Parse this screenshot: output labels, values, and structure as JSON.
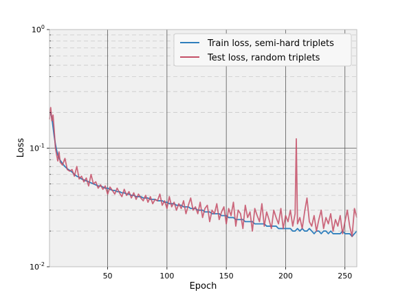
{
  "chart_data": {
    "type": "line",
    "title": "",
    "xlabel": "Epoch",
    "ylabel": "Loss",
    "xlim": [
      1,
      260
    ],
    "ylim": [
      0.01,
      1
    ],
    "yscale": "log",
    "grid": true,
    "legend_position": "top-right",
    "x_ticks": [
      50,
      100,
      150,
      200,
      250
    ],
    "x_tick_labels": [
      "50",
      "100",
      "150",
      "200",
      "250"
    ],
    "y_ticks": [
      0.01,
      0.1,
      1
    ],
    "y_tick_labels": [
      {
        "base": "10",
        "exp": "-2"
      },
      {
        "base": "10",
        "exp": "-1"
      },
      {
        "base": "10",
        "exp": "0"
      }
    ],
    "series": [
      {
        "name": "Train loss, semi-hard triplets",
        "color": "#2e7ebc",
        "x": [
          1,
          2,
          3,
          4,
          5,
          6,
          7,
          8,
          9,
          10,
          12,
          14,
          16,
          18,
          20,
          22,
          24,
          26,
          28,
          30,
          32,
          34,
          36,
          38,
          40,
          42,
          44,
          46,
          48,
          50,
          52,
          54,
          56,
          58,
          60,
          62,
          64,
          66,
          68,
          70,
          72,
          74,
          76,
          78,
          80,
          82,
          84,
          86,
          88,
          90,
          92,
          94,
          96,
          98,
          100,
          102,
          104,
          106,
          108,
          110,
          112,
          114,
          116,
          118,
          120,
          122,
          124,
          126,
          128,
          130,
          132,
          134,
          136,
          138,
          140,
          142,
          144,
          146,
          148,
          150,
          152,
          154,
          156,
          158,
          160,
          162,
          164,
          166,
          168,
          170,
          172,
          174,
          176,
          178,
          180,
          182,
          184,
          186,
          188,
          190,
          192,
          194,
          196,
          198,
          200,
          202,
          204,
          206,
          208,
          210,
          212,
          214,
          216,
          218,
          220,
          222,
          224,
          226,
          228,
          230,
          232,
          234,
          236,
          238,
          240,
          242,
          244,
          246,
          248,
          250,
          252,
          254,
          256,
          258,
          260
        ],
        "values": [
          0.195,
          0.2,
          0.18,
          0.15,
          0.125,
          0.108,
          0.096,
          0.088,
          0.083,
          0.079,
          0.074,
          0.07,
          0.067,
          0.065,
          0.063,
          0.06,
          0.058,
          0.057,
          0.055,
          0.054,
          0.053,
          0.052,
          0.051,
          0.05,
          0.049,
          0.048,
          0.048,
          0.047,
          0.046,
          0.046,
          0.045,
          0.044,
          0.044,
          0.043,
          0.043,
          0.042,
          0.042,
          0.041,
          0.041,
          0.04,
          0.04,
          0.039,
          0.039,
          0.039,
          0.038,
          0.038,
          0.038,
          0.037,
          0.037,
          0.037,
          0.036,
          0.036,
          0.036,
          0.035,
          0.035,
          0.034,
          0.034,
          0.034,
          0.033,
          0.033,
          0.033,
          0.032,
          0.032,
          0.032,
          0.031,
          0.031,
          0.031,
          0.03,
          0.03,
          0.03,
          0.029,
          0.029,
          0.029,
          0.028,
          0.028,
          0.028,
          0.028,
          0.027,
          0.027,
          0.027,
          0.026,
          0.026,
          0.026,
          0.025,
          0.025,
          0.025,
          0.025,
          0.024,
          0.024,
          0.024,
          0.024,
          0.023,
          0.023,
          0.023,
          0.023,
          0.023,
          0.022,
          0.022,
          0.022,
          0.022,
          0.022,
          0.021,
          0.021,
          0.021,
          0.021,
          0.021,
          0.021,
          0.02,
          0.02,
          0.021,
          0.02,
          0.021,
          0.02,
          0.02,
          0.021,
          0.02,
          0.019,
          0.02,
          0.02,
          0.019,
          0.02,
          0.02,
          0.019,
          0.02,
          0.019,
          0.019,
          0.019,
          0.019,
          0.02,
          0.019,
          0.019,
          0.019,
          0.018,
          0.019,
          0.02
        ]
      },
      {
        "name": "Test loss, random triplets",
        "color": "#c44e66",
        "x": [
          1,
          2,
          3,
          4,
          5,
          6,
          7,
          8,
          9,
          10,
          12,
          14,
          16,
          18,
          20,
          22,
          24,
          26,
          28,
          30,
          32,
          34,
          36,
          38,
          40,
          42,
          44,
          46,
          48,
          50,
          52,
          54,
          56,
          58,
          60,
          62,
          64,
          66,
          68,
          70,
          72,
          74,
          76,
          78,
          80,
          82,
          84,
          86,
          88,
          90,
          92,
          94,
          96,
          98,
          100,
          102,
          104,
          106,
          108,
          110,
          112,
          114,
          116,
          118,
          120,
          122,
          124,
          126,
          128,
          130,
          132,
          134,
          136,
          138,
          140,
          142,
          144,
          146,
          148,
          150,
          152,
          154,
          156,
          158,
          160,
          162,
          164,
          166,
          168,
          170,
          172,
          174,
          176,
          178,
          180,
          182,
          184,
          186,
          188,
          190,
          192,
          194,
          196,
          198,
          200,
          202,
          204,
          206,
          208,
          209,
          210,
          212,
          214,
          216,
          218,
          220,
          222,
          224,
          226,
          228,
          230,
          232,
          234,
          236,
          238,
          240,
          242,
          244,
          246,
          248,
          250,
          252,
          254,
          256,
          258,
          260
        ],
        "values": [
          0.175,
          0.22,
          0.17,
          0.19,
          0.14,
          0.1,
          0.088,
          0.078,
          0.093,
          0.076,
          0.072,
          0.082,
          0.066,
          0.064,
          0.066,
          0.058,
          0.07,
          0.055,
          0.058,
          0.052,
          0.056,
          0.048,
          0.06,
          0.05,
          0.052,
          0.046,
          0.049,
          0.045,
          0.048,
          0.041,
          0.047,
          0.044,
          0.041,
          0.046,
          0.042,
          0.039,
          0.045,
          0.04,
          0.043,
          0.038,
          0.042,
          0.037,
          0.041,
          0.038,
          0.036,
          0.04,
          0.035,
          0.039,
          0.034,
          0.037,
          0.036,
          0.041,
          0.033,
          0.036,
          0.031,
          0.039,
          0.032,
          0.035,
          0.03,
          0.034,
          0.031,
          0.036,
          0.028,
          0.033,
          0.038,
          0.03,
          0.032,
          0.028,
          0.035,
          0.026,
          0.031,
          0.033,
          0.024,
          0.03,
          0.028,
          0.034,
          0.025,
          0.029,
          0.032,
          0.023,
          0.031,
          0.027,
          0.035,
          0.022,
          0.03,
          0.028,
          0.021,
          0.033,
          0.026,
          0.029,
          0.02,
          0.031,
          0.027,
          0.024,
          0.034,
          0.022,
          0.029,
          0.025,
          0.021,
          0.03,
          0.026,
          0.023,
          0.031,
          0.021,
          0.027,
          0.024,
          0.03,
          0.022,
          0.028,
          0.12,
          0.023,
          0.026,
          0.021,
          0.029,
          0.038,
          0.024,
          0.022,
          0.027,
          0.02,
          0.025,
          0.03,
          0.021,
          0.026,
          0.023,
          0.028,
          0.02,
          0.025,
          0.022,
          0.027,
          0.019,
          0.024,
          0.03,
          0.022,
          0.018,
          0.031,
          0.026
        ]
      }
    ]
  }
}
